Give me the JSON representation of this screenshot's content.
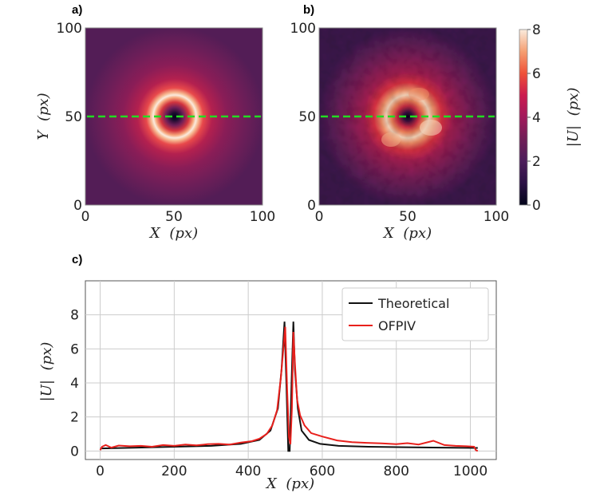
{
  "panel_labels": {
    "a": "a)",
    "b": "b)",
    "c": "c)"
  },
  "colors": {
    "theoretical": "#111111",
    "ofpiv": "#e8201c",
    "profile_line": "#22dd22",
    "grid": "#cccccc",
    "frame": "#888888"
  },
  "chart_data": [
    {
      "id": "a",
      "type": "heatmap",
      "title": "",
      "xlabel": "X (px)",
      "ylabel": "Y (px)",
      "xlim": [
        0,
        100
      ],
      "ylim": [
        0,
        100
      ],
      "xticks": [
        "0",
        "50",
        "100"
      ],
      "yticks": [
        "0",
        "50",
        "100"
      ],
      "annotation": "dashed horizontal profile line at Y = 50",
      "profile_y": 50,
      "ring_center": [
        50,
        50
      ],
      "peak_radius_px": 7.5
    },
    {
      "id": "b",
      "type": "heatmap",
      "title": "",
      "xlabel": "X (px)",
      "ylabel": "",
      "xlim": [
        0,
        100
      ],
      "ylim": [
        0,
        100
      ],
      "xticks": [
        "0",
        "50",
        "100"
      ],
      "yticks": [
        "0",
        "50",
        "100"
      ],
      "annotation": "dashed horizontal profile line at Y = 50",
      "profile_y": 50,
      "colorbar": {
        "label": "|U| (px)",
        "range": [
          0,
          8
        ],
        "ticks": [
          "0",
          "2",
          "4",
          "6",
          "8"
        ]
      }
    },
    {
      "id": "c",
      "type": "line",
      "title": "",
      "xlabel": "X (px)",
      "ylabel": "|U| (px)",
      "xlim": [
        -40,
        1070
      ],
      "ylim": [
        -0.5,
        10
      ],
      "xticks": [
        0,
        200,
        400,
        600,
        800,
        1000
      ],
      "yticks": [
        0,
        2,
        4,
        6,
        8
      ],
      "grid": true,
      "legend_position": "top-right",
      "series": [
        {
          "name": "Theoretical",
          "x": [
            0,
            100,
            200,
            300,
            380,
            430,
            460,
            480,
            490,
            498,
            503,
            508,
            512,
            517,
            522,
            526,
            534,
            544,
            564,
            594,
            644,
            724,
            824,
            924,
            1020
          ],
          "y": [
            0.15,
            0.2,
            0.25,
            0.3,
            0.42,
            0.65,
            1.2,
            2.5,
            4.8,
            7.6,
            4.0,
            0.0,
            0.0,
            4.0,
            7.6,
            4.8,
            2.5,
            1.2,
            0.65,
            0.42,
            0.3,
            0.25,
            0.22,
            0.2,
            0.18
          ]
        },
        {
          "name": "OFPIV",
          "x": [
            0,
            5,
            15,
            30,
            50,
            80,
            110,
            140,
            170,
            200,
            230,
            260,
            290,
            320,
            350,
            380,
            410,
            430,
            450,
            465,
            478,
            488,
            496,
            500,
            505,
            510,
            514,
            518,
            522,
            526,
            532,
            540,
            552,
            570,
            600,
            640,
            680,
            720,
            760,
            800,
            830,
            860,
            900,
            930,
            960,
            990,
            1010,
            1015,
            1020
          ],
          "y": [
            0.05,
            0.25,
            0.35,
            0.2,
            0.32,
            0.28,
            0.3,
            0.25,
            0.35,
            0.3,
            0.38,
            0.33,
            0.4,
            0.42,
            0.38,
            0.5,
            0.58,
            0.72,
            1.0,
            1.5,
            2.4,
            4.3,
            6.3,
            7.3,
            3.6,
            0.8,
            0.4,
            2.5,
            7.0,
            5.2,
            3.0,
            2.1,
            1.5,
            1.05,
            0.85,
            0.62,
            0.52,
            0.48,
            0.45,
            0.4,
            0.46,
            0.38,
            0.6,
            0.35,
            0.3,
            0.28,
            0.25,
            0.05,
            0.0
          ]
        }
      ]
    }
  ]
}
